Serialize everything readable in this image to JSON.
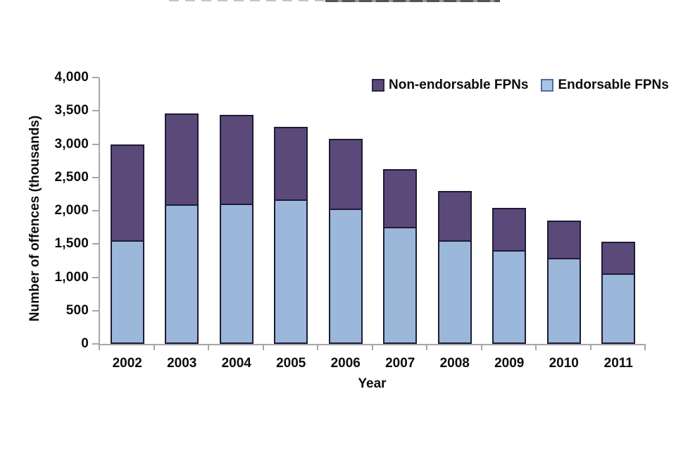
{
  "chart_data": {
    "type": "bar",
    "stacked": true,
    "categories": [
      "2002",
      "2003",
      "2004",
      "2005",
      "2006",
      "2007",
      "2008",
      "2009",
      "2010",
      "2011"
    ],
    "series": [
      {
        "name": "Endorsable FPNs",
        "color": "#9bb7da",
        "bar_border_color": "#1e1b35",
        "legend_swatch_border": "#4f6d9e",
        "values": [
          1530,
          2070,
          2090,
          2150,
          2010,
          1740,
          1530,
          1390,
          1270,
          1040
        ]
      },
      {
        "name": "Non-endorsable FPNs",
        "color": "#5b4a79",
        "bar_border_color": "#1e1b35",
        "legend_swatch_border": "#2b2547",
        "values": [
          1470,
          1390,
          1350,
          1110,
          1070,
          890,
          770,
          650,
          580,
          490
        ]
      }
    ],
    "totals": [
      3000,
      3460,
      3440,
      3260,
      3080,
      2630,
      2300,
      2040,
      1850,
      1530
    ],
    "xlabel": "Year",
    "ylabel": "Number of offences (thousands)",
    "ylim": [
      0,
      4000
    ],
    "ytick_step": 500,
    "ytick_labels": [
      "4,000",
      "3,500",
      "3,000",
      "2,500",
      "2,000",
      "1,500",
      "1,000",
      "500",
      "0"
    ],
    "grid": false,
    "legend_position": "top-right",
    "legend_order": [
      "Non-endorsable FPNs",
      "Endorsable FPNs"
    ],
    "axis_line_color": "#a6a6a6",
    "text_color": "#0d0d0d"
  }
}
